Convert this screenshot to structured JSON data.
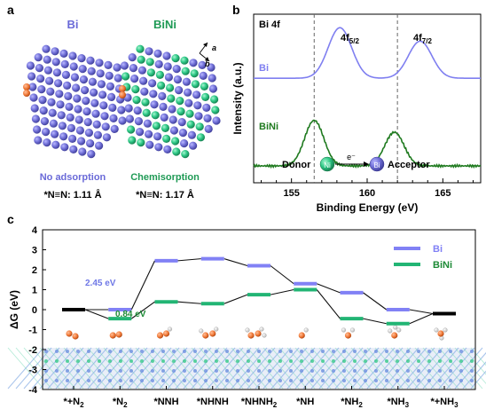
{
  "panel_labels": {
    "a": "a",
    "b": "b",
    "c": "c"
  },
  "panel_a": {
    "bi": {
      "title": "Bi",
      "caption": "No adsorption",
      "bond_prefix": "*N≡N: ",
      "bond_value": "1.11 Å"
    },
    "bini": {
      "title": "BiNi",
      "caption": "Chemisorption",
      "bond_prefix": "*N≡N: ",
      "bond_value": "1.17 Å"
    },
    "axes_labels": {
      "a": "a",
      "b": "b"
    },
    "colors": {
      "bi_atom": "#7473d6",
      "ni_atom": "#2fc987",
      "n2": "#f07a3c"
    }
  },
  "chart_data": [
    {
      "panel": "b",
      "type": "line",
      "title": "Bi 4f",
      "xlabel": "Binding Energy (eV)",
      "ylabel": "Intensity (a.u.)",
      "xlim": [
        152.5,
        167.5
      ],
      "x_ticks": [
        "155",
        "160",
        "165"
      ],
      "y_ticks": [],
      "peak_labels": [
        {
          "main": "4f",
          "sub": "5/2"
        },
        {
          "main": "4f",
          "sub": "7/2"
        }
      ],
      "reference_lines": [
        156.5,
        162.0
      ],
      "series": [
        {
          "name": "Bi",
          "color": "#7f7ff0",
          "baseline": 0.62,
          "peaks": [
            {
              "x": 158.2,
              "h": 0.3,
              "w": 1.1
            },
            {
              "x": 163.5,
              "h": 0.22,
              "w": 1.1
            }
          ]
        },
        {
          "name": "BiNi",
          "color": "#1f7a1f",
          "baseline": 0.1,
          "peaks": [
            {
              "x": 156.5,
              "h": 0.27,
              "w": 0.9
            },
            {
              "x": 161.8,
              "h": 0.2,
              "w": 0.9
            }
          ]
        }
      ],
      "grid": false,
      "annotation": {
        "donor": "Donor",
        "acceptor": "Acceptor",
        "donor_atom": "Ni",
        "acceptor_atom": "Bi",
        "electron": "e⁻"
      }
    },
    {
      "panel": "c",
      "type": "line",
      "ylabel": "ΔG (eV)",
      "ylim": [
        -4,
        4
      ],
      "y_ticks": [
        "-4",
        "-3",
        "-2",
        "-1",
        "0",
        "1",
        "2",
        "3",
        "4"
      ],
      "categories": [
        "*+N2",
        "*N2",
        "*NNH",
        "*NHNH",
        "*NHNH2",
        "*NH",
        "*NH2",
        "*NH3",
        "*+NH3"
      ],
      "category_labels": [
        {
          "main": "*+N",
          "sub": "2"
        },
        {
          "main": "*N",
          "sub": "2"
        },
        {
          "main": "*NNH",
          "sub": ""
        },
        {
          "main": "*NHNH",
          "sub": ""
        },
        {
          "main": "*NHNH",
          "sub": "2"
        },
        {
          "main": "*NH",
          "sub": ""
        },
        {
          "main": "*NH",
          "sub": "2"
        },
        {
          "main": "*NH",
          "sub": "3"
        },
        {
          "main": "*+NH",
          "sub": "3"
        }
      ],
      "series": [
        {
          "name": "Bi",
          "color": "#8181f5",
          "values": [
            0,
            0,
            2.45,
            2.55,
            2.2,
            1.3,
            0.85,
            0.0,
            -0.2
          ]
        },
        {
          "name": "BiNi",
          "color": "#22b574",
          "values": [
            0,
            -0.45,
            0.39,
            0.3,
            0.75,
            1.0,
            -0.45,
            -0.7,
            -0.2
          ]
        }
      ],
      "annotations": [
        {
          "text": "2.45 eV",
          "color": "#6f78e6"
        },
        {
          "text": "0.84 eV",
          "color": "#1c8a35"
        }
      ],
      "legend": "top-right",
      "grid": false
    }
  ]
}
